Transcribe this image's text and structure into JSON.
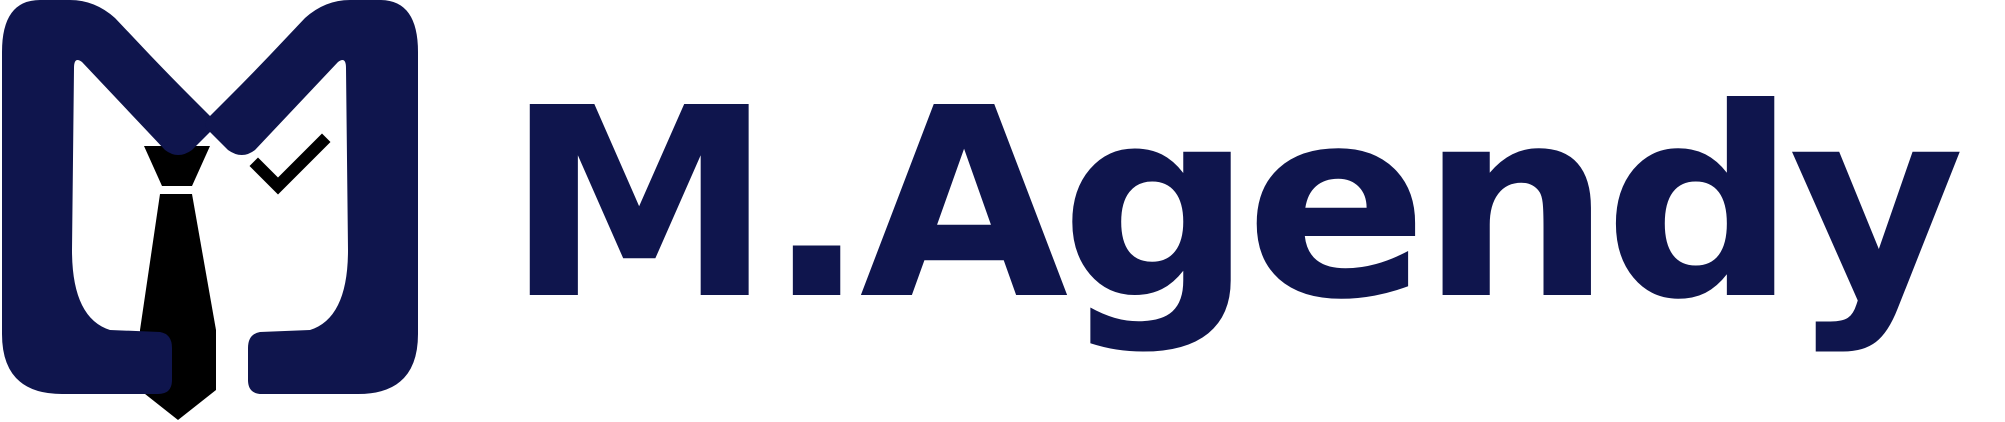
{
  "brand": {
    "wordmark": "M.Agendy",
    "colors": {
      "navy": "#0f154d",
      "tie": "#000000",
      "background": "#ffffff"
    }
  },
  "emblem": {
    "icon": "m-shirt-tie-emblem"
  }
}
